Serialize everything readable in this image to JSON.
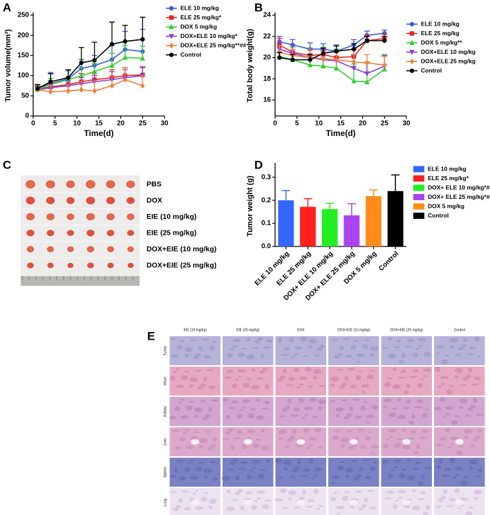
{
  "chart_data": [
    {
      "type": "line",
      "panel": "A",
      "x_label": "Time(d)",
      "y_label": "Tumor volume(mm³)",
      "x": [
        1,
        4,
        8,
        11,
        14,
        18,
        21,
        25
      ],
      "xlim": [
        0,
        30
      ],
      "xticks": [
        0,
        5,
        10,
        15,
        20,
        25,
        30
      ],
      "ylim": [
        0,
        250
      ],
      "yticks": [
        0,
        50,
        100,
        150,
        200,
        250
      ],
      "series": [
        {
          "name": "ELE 10 mg/kg",
          "color": "#3a5bd9",
          "marker": "circle",
          "values": [
            68,
            80,
            92,
            118,
            125,
            140,
            165,
            160
          ],
          "errors": [
            8,
            28,
            20,
            22,
            25,
            35,
            45,
            55
          ]
        },
        {
          "name": "ELE 25 mg/kg*",
          "color": "#e8231f",
          "marker": "square",
          "values": [
            67,
            72,
            78,
            85,
            90,
            95,
            100,
            102
          ],
          "errors": [
            10,
            15,
            15,
            20,
            15,
            20,
            20,
            20
          ]
        },
        {
          "name": "DOX 5 mg/kg",
          "color": "#33cc33",
          "marker": "triangle-up",
          "values": [
            66,
            78,
            90,
            100,
            110,
            125,
            145,
            143
          ],
          "errors": [
            10,
            15,
            25,
            20,
            20,
            30,
            30,
            30
          ]
        },
        {
          "name": "DOX+ELE 10 mg/kg*",
          "color": "#8a3fd6",
          "marker": "triangle-down",
          "values": [
            65,
            70,
            75,
            80,
            85,
            90,
            95,
            100
          ],
          "errors": [
            8,
            10,
            12,
            15,
            15,
            20,
            20,
            20
          ]
        },
        {
          "name": "DOX+ELE 25 mg/kg**##",
          "color": "#f07f3c",
          "marker": "diamond",
          "values": [
            65,
            60,
            62,
            65,
            62,
            75,
            90,
            75
          ],
          "errors": [
            10,
            15,
            15,
            20,
            25,
            25,
            30,
            25
          ]
        },
        {
          "name": "Control",
          "color": "#000000",
          "marker": "circle",
          "values": [
            68,
            85,
            95,
            132,
            138,
            178,
            185,
            190
          ],
          "errors": [
            10,
            20,
            20,
            38,
            45,
            55,
            40,
            55
          ]
        }
      ]
    },
    {
      "type": "line",
      "panel": "B",
      "x_label": "Time(d)",
      "y_label": "Total body weight(g)",
      "x": [
        1,
        4,
        8,
        11,
        14,
        18,
        21,
        25
      ],
      "xlim": [
        0,
        30
      ],
      "xticks": [
        0,
        5,
        10,
        15,
        20,
        25,
        30
      ],
      "ylim": [
        14.5,
        24
      ],
      "yticks": [
        16,
        18,
        20,
        22,
        24
      ],
      "series": [
        {
          "name": "ELE 10 mg/kg",
          "color": "#3a5bd9",
          "marker": "circle",
          "values": [
            21.5,
            21.2,
            20.8,
            20.8,
            20.6,
            21.2,
            22.1,
            22.3
          ],
          "errors": [
            0.5,
            0.5,
            0.6,
            0.5,
            0.6,
            0.5,
            0.4,
            0.3
          ]
        },
        {
          "name": "ELE 25 mg/kg",
          "color": "#e8231f",
          "marker": "square",
          "values": [
            21.2,
            20.5,
            20.2,
            20.3,
            20.0,
            20.1,
            21.6,
            21.8
          ],
          "errors": [
            0.6,
            0.5,
            0.5,
            0.6,
            0.6,
            0.7,
            0.5,
            0.4
          ]
        },
        {
          "name": "DOX 5 mg/kg**",
          "color": "#33cc33",
          "marker": "triangle-up",
          "values": [
            20.1,
            19.8,
            19.3,
            19.2,
            19.0,
            17.8,
            17.7,
            18.9
          ],
          "errors": [
            1.0,
            1.2,
            1.6,
            1.8,
            1.8,
            1.6,
            1.9,
            1.4
          ]
        },
        {
          "name": "DOX+ELE 10 mg/kg",
          "color": "#8a3fd6",
          "marker": "triangle-down",
          "values": [
            20.8,
            20.4,
            20.0,
            19.8,
            19.7,
            19.0,
            18.5,
            19.2
          ],
          "errors": [
            1.2,
            0.8,
            0.8,
            0.9,
            1.0,
            1.2,
            1.0,
            1.0
          ]
        },
        {
          "name": "DOX+ELE 25 mg/kg",
          "color": "#f07f3c",
          "marker": "diamond",
          "values": [
            20.5,
            20.2,
            20.0,
            19.9,
            19.8,
            19.6,
            19.5,
            19.3
          ],
          "errors": [
            0.6,
            0.6,
            0.7,
            0.7,
            0.7,
            0.7,
            0.8,
            0.8
          ]
        },
        {
          "name": "Control",
          "color": "#000000",
          "marker": "circle",
          "values": [
            20.0,
            19.8,
            19.8,
            20.4,
            20.6,
            20.8,
            21.6,
            21.6
          ],
          "errors": [
            0.5,
            0.5,
            0.5,
            0.5,
            0.5,
            0.5,
            0.4,
            0.4
          ]
        }
      ]
    },
    {
      "type": "bar",
      "panel": "D",
      "y_label": "Tumor weight (g)",
      "categories": [
        "ELE 10 mg/kg",
        "ELE 25 mg/kg",
        "DOX+ ELE 10 mg/kg",
        "DOX+ ELE 25 mg/kg",
        "DOX 5 mg/kg",
        "Control"
      ],
      "values": [
        0.2,
        0.172,
        0.162,
        0.135,
        0.218,
        0.24
      ],
      "errors": [
        0.042,
        0.035,
        0.025,
        0.05,
        0.027,
        0.07
      ],
      "colors": [
        "#3366ff",
        "#ff2020",
        "#22ee22",
        "#aa44ee",
        "#ff8c1a",
        "#000000"
      ],
      "legend": [
        "ELE 10 mg/kg",
        "ELE 25 mg/kg*",
        "DOX+ ELE 10 mg/kg*##",
        "DOX+ ELE 25 mg/kg*##",
        "DOX 5 mg/kg",
        "Control"
      ],
      "ylim": [
        0,
        0.35
      ],
      "yticks": [
        {
          "value": 0,
          "label": "0.0"
        },
        0.1,
        0.2,
        0.3
      ]
    }
  ],
  "photo": {
    "panel": "C",
    "rows": [
      "PBS",
      "DOX",
      "EIE (10 mg/kg)",
      "EIE (25 mg/kg)",
      "DOX+EIE (10 mg/kg)",
      "DOX+EIE (25 mg/kg)"
    ]
  },
  "histology": {
    "panel": "E",
    "columns": [
      "EIE (10 mg/kg)",
      "EIE (25 mg/kg)",
      "DOX",
      "DOX+EIE (10 mg/kg)",
      "DOX+EIE (25 mg/kg)",
      "Control"
    ],
    "rows": [
      "Tumor",
      "Heart",
      "Kidney",
      "Liver",
      "Spleen",
      "Lung"
    ]
  }
}
